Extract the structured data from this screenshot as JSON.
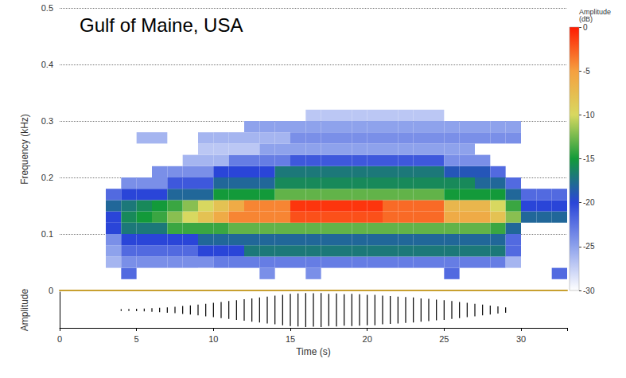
{
  "chart_data": [
    {
      "type": "heatmap",
      "title": "Gulf of Maine, USA",
      "y_label": "Frequency (kHz)",
      "xlim": [
        0,
        33
      ],
      "ylim": [
        0,
        0.5
      ],
      "yticks": [
        0,
        0.1,
        0.2,
        0.3,
        0.4,
        0.5
      ],
      "grid": true,
      "tick_labels": "y",
      "time_edges": [
        0,
        1,
        2,
        3,
        4,
        5,
        6,
        7,
        8,
        9,
        10,
        11,
        12,
        13,
        14,
        15,
        16,
        17,
        18,
        19,
        20,
        21,
        22,
        23,
        24,
        25,
        26,
        27,
        28,
        29,
        30,
        31,
        32,
        33
      ],
      "frequency_edges": [
        0.02,
        0.04,
        0.06,
        0.08,
        0.1,
        0.12,
        0.14,
        0.16,
        0.18,
        0.2,
        0.22,
        0.24,
        0.26,
        0.28,
        0.3,
        0.32
      ],
      "cells": [
        [
          null,
          null,
          null,
          null,
          -22,
          null,
          null,
          null,
          null,
          null,
          null,
          null,
          null,
          -24,
          null,
          null,
          -24,
          null,
          null,
          null,
          null,
          null,
          null,
          null,
          null,
          -22,
          null,
          null,
          null,
          null,
          null,
          null,
          -22
        ],
        [
          null,
          null,
          null,
          -26,
          -24,
          -24,
          -24,
          -24,
          -24,
          -24,
          -23,
          -23,
          -23,
          -23,
          -23,
          -23,
          -23,
          -23,
          -23,
          -23,
          -23,
          -23,
          -23,
          -23,
          -23,
          -23,
          -23,
          -23,
          -23,
          -26,
          null,
          null,
          null
        ],
        [
          null,
          null,
          null,
          -25,
          -22,
          -22,
          -22,
          -22,
          -22,
          -20,
          -20,
          -20,
          -17,
          -17,
          -17,
          -17,
          -17,
          -17,
          -17,
          -17,
          -17,
          -17,
          -17,
          -17,
          -17,
          -17,
          -17,
          -17,
          -17,
          -22,
          null,
          null,
          null
        ],
        [
          null,
          null,
          null,
          -24,
          -20,
          -20,
          -20,
          -20,
          -20,
          -18,
          -18,
          -18,
          -18,
          -18,
          -18,
          -18,
          -18,
          -18,
          -18,
          -18,
          -18,
          -18,
          -18,
          -18,
          -18,
          -18,
          -18,
          -18,
          -18,
          -22,
          null,
          null,
          null
        ],
        [
          null,
          null,
          null,
          -20,
          -17,
          -17,
          -17,
          -14,
          -14,
          -14,
          -14,
          -13,
          -13,
          -13,
          -13,
          -13,
          -13,
          -13,
          -13,
          -13,
          -13,
          -13,
          -13,
          -13,
          -13,
          -13,
          -13,
          -13,
          -14,
          -18,
          null,
          null,
          null
        ],
        [
          null,
          null,
          null,
          -20,
          -16,
          -15,
          -14,
          -12,
          -10,
          -8,
          -6,
          -4,
          -4,
          -4,
          -4,
          -2,
          -2,
          -2,
          -2,
          -2,
          -2,
          -3,
          -3,
          -3,
          -3,
          -6,
          -6,
          -6,
          -8,
          -12,
          -18,
          -18,
          -18
        ],
        [
          null,
          null,
          null,
          -18,
          -17,
          -16,
          -15,
          -14,
          -12,
          -10,
          -8,
          -6,
          -4,
          -4,
          -4,
          -1,
          -1,
          -1,
          -1,
          -1,
          -1,
          -3,
          -3,
          -3,
          -3,
          -7,
          -7,
          -7,
          -10,
          -14,
          -20,
          -20,
          -20
        ],
        [
          null,
          null,
          null,
          -22,
          -20,
          -20,
          -20,
          -18,
          -18,
          -18,
          -15,
          -15,
          -15,
          -15,
          -13,
          -13,
          -13,
          -13,
          -13,
          -13,
          -13,
          -13,
          -13,
          -13,
          -13,
          -15,
          -15,
          -15,
          -15,
          -18,
          -22,
          -22,
          -22
        ],
        [
          null,
          null,
          null,
          null,
          -24,
          -24,
          -24,
          -21,
          -21,
          -21,
          -18,
          -18,
          -18,
          -18,
          -16,
          -16,
          -16,
          -16,
          -16,
          -16,
          -16,
          -16,
          -16,
          -16,
          -16,
          -16,
          -16,
          -18,
          -18,
          -22,
          null,
          null,
          null
        ],
        [
          null,
          null,
          null,
          null,
          null,
          null,
          -24,
          -24,
          -24,
          -24,
          -20,
          -20,
          -20,
          -20,
          -17,
          -17,
          -17,
          -17,
          -17,
          -17,
          -17,
          -17,
          -17,
          -17,
          -17,
          -19,
          -19,
          -19,
          -22,
          null,
          null,
          null,
          null
        ],
        [
          null,
          null,
          null,
          null,
          null,
          null,
          null,
          null,
          -26,
          -26,
          -26,
          -23,
          -23,
          -23,
          -23,
          -21,
          -21,
          -21,
          -21,
          -21,
          -21,
          -21,
          -21,
          -21,
          -21,
          -24,
          -24,
          -24,
          null,
          null,
          null,
          null,
          null
        ],
        [
          null,
          null,
          null,
          null,
          null,
          null,
          null,
          null,
          null,
          -27,
          -27,
          -27,
          -27,
          -25,
          -25,
          -25,
          -25,
          -25,
          -25,
          -25,
          -25,
          -25,
          -25,
          -25,
          -25,
          -25,
          -25,
          null,
          null,
          null,
          null,
          null,
          null
        ],
        [
          null,
          null,
          null,
          null,
          null,
          -26,
          -26,
          null,
          null,
          -26,
          -26,
          -26,
          -26,
          -26,
          -26,
          -24,
          -24,
          -24,
          -24,
          -24,
          -24,
          -24,
          -24,
          -24,
          -24,
          -24,
          -24,
          -24,
          -24,
          -24,
          null,
          null,
          null
        ],
        [
          null,
          null,
          null,
          null,
          null,
          null,
          null,
          null,
          null,
          null,
          null,
          null,
          -25,
          -25,
          -25,
          -25,
          -25,
          -25,
          -25,
          -25,
          -25,
          -25,
          -25,
          -25,
          -25,
          -25,
          -25,
          -25,
          -25,
          -25,
          null,
          null,
          null
        ],
        [
          null,
          null,
          null,
          null,
          null,
          null,
          null,
          null,
          null,
          null,
          null,
          null,
          null,
          null,
          null,
          null,
          -27,
          -27,
          -27,
          -27,
          -27,
          -27,
          -27,
          -27,
          -27,
          null,
          null,
          null,
          null,
          null,
          null,
          null,
          null
        ]
      ],
      "colorbar": {
        "label": "Amplitude (dB)",
        "range": [
          -30,
          0
        ],
        "ticks": [
          0,
          -5,
          -10,
          -15,
          -20,
          -25,
          -30
        ]
      }
    },
    {
      "type": "waveform",
      "x_label": "Time (s)",
      "y_label": "Amplitude",
      "xlim": [
        0,
        33
      ],
      "xticks": [
        0,
        5,
        10,
        15,
        20,
        25,
        30
      ],
      "ylim": [
        -1,
        1
      ],
      "tick_labels": "x",
      "color": "#000000",
      "x": [
        4,
        4.5,
        5,
        5.5,
        6,
        6.5,
        7,
        7.5,
        8,
        8.5,
        9,
        9.5,
        10,
        10.5,
        11,
        11.5,
        12,
        12.5,
        13,
        13.5,
        14,
        14.5,
        15,
        15.5,
        16,
        16.5,
        17,
        17.5,
        18,
        18.5,
        19,
        19.5,
        20,
        20.5,
        21,
        21.5,
        22,
        22.5,
        23,
        23.5,
        24,
        24.5,
        25,
        25.5,
        26,
        26.5,
        27,
        27.5,
        28,
        28.5,
        29
      ],
      "values": [
        0.05,
        0.06,
        0.07,
        0.08,
        0.1,
        0.12,
        0.15,
        0.18,
        0.22,
        0.26,
        0.3,
        0.35,
        0.4,
        0.45,
        0.5,
        0.55,
        0.6,
        0.65,
        0.7,
        0.75,
        0.8,
        0.85,
        0.9,
        0.92,
        0.95,
        0.93,
        0.95,
        0.9,
        0.92,
        0.88,
        0.9,
        0.88,
        0.85,
        0.85,
        0.8,
        0.78,
        0.75,
        0.72,
        0.7,
        0.65,
        0.62,
        0.58,
        0.55,
        0.5,
        0.45,
        0.4,
        0.35,
        0.3,
        0.25,
        0.2,
        0.15
      ]
    }
  ]
}
